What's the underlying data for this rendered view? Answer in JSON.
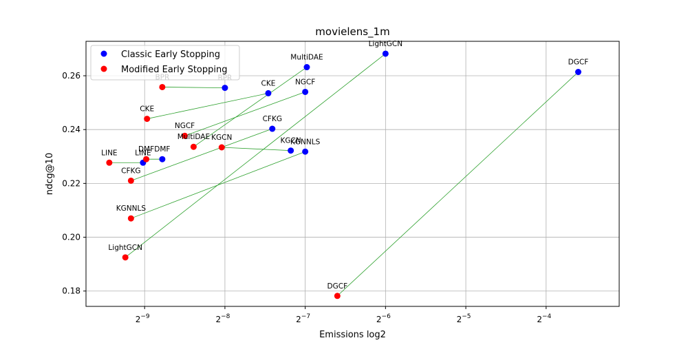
{
  "chart_data": {
    "type": "scatter",
    "title": "movielens_1m",
    "xlabel": "Emissions log2",
    "ylabel": "ndcg@10",
    "x_scale": "log2",
    "xlim": [
      -9.73,
      -3.09
    ],
    "ylim": [
      0.1743,
      0.2728
    ],
    "x_ticks": [
      {
        "value": -9,
        "base": "2",
        "exp": "−9"
      },
      {
        "value": -8,
        "base": "2",
        "exp": "−8"
      },
      {
        "value": -7,
        "base": "2",
        "exp": "−7"
      },
      {
        "value": -6,
        "base": "2",
        "exp": "−6"
      },
      {
        "value": -5,
        "base": "2",
        "exp": "−5"
      },
      {
        "value": -4,
        "base": "2",
        "exp": "−4"
      }
    ],
    "y_ticks": [
      {
        "value": 0.18,
        "label": "0.18"
      },
      {
        "value": 0.2,
        "label": "0.20"
      },
      {
        "value": 0.22,
        "label": "0.22"
      },
      {
        "value": 0.24,
        "label": "0.24"
      },
      {
        "value": 0.26,
        "label": "0.26"
      }
    ],
    "grid": true,
    "legend_position": "top-left",
    "series": [
      {
        "name": "Classic Early Stopping",
        "color": "#0000ff",
        "points": [
          {
            "label": "LightGCN",
            "x": -6.0,
            "y": 0.2682
          },
          {
            "label": "DGCF",
            "x": -3.6,
            "y": 0.2614
          },
          {
            "label": "MultiDAE",
            "x": -6.98,
            "y": 0.2632
          },
          {
            "label": "BPR",
            "x": -8.0,
            "y": 0.2555
          },
          {
            "label": "CKE",
            "x": -7.46,
            "y": 0.2535
          },
          {
            "label": "NGCF",
            "x": -7.0,
            "y": 0.254
          },
          {
            "label": "CFKG",
            "x": -7.41,
            "y": 0.2403
          },
          {
            "label": "KGCN",
            "x": -7.18,
            "y": 0.2322
          },
          {
            "label": "KGNNLS",
            "x": -7.0,
            "y": 0.2318
          },
          {
            "label": "LINE",
            "x": -9.02,
            "y": 0.2277
          },
          {
            "label": "DMF",
            "x": -8.78,
            "y": 0.229
          }
        ]
      },
      {
        "name": "Modified Early Stopping",
        "color": "#ff0000",
        "points": [
          {
            "label": "BPR",
            "x": -8.78,
            "y": 0.2558
          },
          {
            "label": "CKE",
            "x": -8.97,
            "y": 0.244
          },
          {
            "label": "NGCF",
            "x": -8.5,
            "y": 0.2377
          },
          {
            "label": "MultiDAE",
            "x": -8.39,
            "y": 0.2336
          },
          {
            "label": "KGCN",
            "x": -8.04,
            "y": 0.2334
          },
          {
            "label": "DMF",
            "x": -8.98,
            "y": 0.229
          },
          {
            "label": "LINE",
            "x": -9.44,
            "y": 0.2277
          },
          {
            "label": "CFKG",
            "x": -9.17,
            "y": 0.221
          },
          {
            "label": "KGNNLS",
            "x": -9.17,
            "y": 0.207
          },
          {
            "label": "LightGCN",
            "x": -9.24,
            "y": 0.1925
          },
          {
            "label": "DGCF",
            "x": -6.6,
            "y": 0.1782
          }
        ]
      }
    ],
    "connections": {
      "color": "#2ca02c",
      "pairs": [
        "BPR",
        "CKE",
        "NGCF",
        "MultiDAE",
        "KGCN",
        "DMF",
        "LINE",
        "CFKG",
        "KGNNLS",
        "LightGCN",
        "DGCF"
      ]
    }
  }
}
